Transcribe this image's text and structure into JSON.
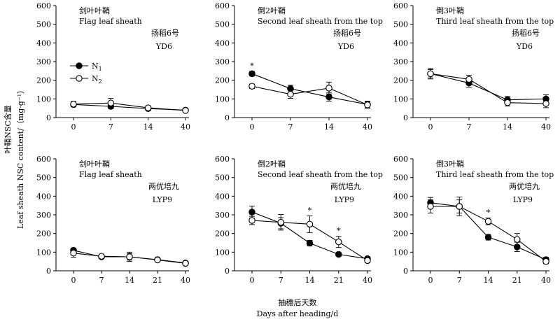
{
  "figure": {
    "y_label_cn": "叶鞘NSC含量",
    "y_label_en": "Leaf sheath NSC content/（mg·g⁻¹）",
    "x_label_cn": "抽穗后天数",
    "x_label_en": "Days after heading/d"
  },
  "legend": {
    "n1": "N",
    "n1_sub": "1",
    "n2": "N",
    "n2_sub": "2"
  },
  "chart_data": [
    {
      "type": "line",
      "title_cn": "剑叶叶鞘",
      "title_en": "Flag leaf sheath",
      "cultivar_cn": "扬稻6号",
      "cultivar_en": "YD6",
      "categories": [
        "0",
        "7",
        "14",
        "40"
      ],
      "ylim": [
        0,
        600
      ],
      "yticks": [
        0,
        100,
        200,
        300,
        400,
        500,
        600
      ],
      "series": [
        {
          "name": "N1",
          "values": [
            70,
            60,
            48,
            40
          ],
          "errors": [
            12,
            12,
            8,
            8
          ]
        },
        {
          "name": "N2",
          "values": [
            72,
            78,
            52,
            38
          ],
          "errors": [
            15,
            25,
            10,
            8
          ]
        }
      ],
      "significant": [],
      "has_legend": true
    },
    {
      "type": "line",
      "title_cn": "倒2叶鞘",
      "title_en": "Second leaf sheath from the top",
      "cultivar_cn": "扬稻6号",
      "cultivar_en": "YD6",
      "categories": [
        "0",
        "7",
        "14",
        "40"
      ],
      "ylim": [
        0,
        600
      ],
      "yticks": [
        0,
        100,
        200,
        300,
        400,
        500,
        600
      ],
      "series": [
        {
          "name": "N1",
          "values": [
            235,
            155,
            110,
            70
          ],
          "errors": [
            12,
            18,
            22,
            18
          ]
        },
        {
          "name": "N2",
          "values": [
            168,
            125,
            158,
            68
          ],
          "errors": [
            12,
            22,
            32,
            18
          ]
        }
      ],
      "significant": [
        0
      ],
      "star": "*",
      "has_legend": false
    },
    {
      "type": "line",
      "title_cn": "倒3叶鞘",
      "title_en": "Third leaf sheath from the top",
      "cultivar_cn": "扬稻6号",
      "cultivar_en": "YD6",
      "categories": [
        "0",
        "7",
        "14",
        "40"
      ],
      "ylim": [
        0,
        600
      ],
      "yticks": [
        0,
        100,
        200,
        300,
        400,
        500,
        600
      ],
      "series": [
        {
          "name": "N1",
          "values": [
            235,
            185,
            95,
            100
          ],
          "errors": [
            22,
            22,
            18,
            22
          ]
        },
        {
          "name": "N2",
          "values": [
            235,
            205,
            80,
            75
          ],
          "errors": [
            28,
            22,
            18,
            22
          ]
        }
      ],
      "significant": [],
      "has_legend": false
    },
    {
      "type": "line",
      "title_cn": "剑叶叶鞘",
      "title_en": "Flag leaf sheath",
      "cultivar_cn": "两优培九",
      "cultivar_en": "LYP9",
      "categories": [
        "0",
        "7",
        "14",
        "21",
        "40"
      ],
      "ylim": [
        0,
        600
      ],
      "yticks": [
        0,
        100,
        200,
        300,
        400,
        500,
        600
      ],
      "series": [
        {
          "name": "N1",
          "values": [
            110,
            75,
            75,
            60,
            42
          ],
          "errors": [
            12,
            10,
            18,
            10,
            8
          ]
        },
        {
          "name": "N2",
          "values": [
            95,
            78,
            75,
            58,
            40
          ],
          "errors": [
            22,
            10,
            25,
            10,
            10
          ]
        }
      ],
      "significant": [],
      "has_legend": false
    },
    {
      "type": "line",
      "title_cn": "倒2叶鞘",
      "title_en": "Second leaf sheath from the top",
      "cultivar_cn": "两优培九",
      "cultivar_en": "LYP9",
      "categories": [
        "0",
        "7",
        "14",
        "21",
        "40"
      ],
      "ylim": [
        0,
        600
      ],
      "yticks": [
        0,
        100,
        200,
        300,
        400,
        500,
        600
      ],
      "series": [
        {
          "name": "N1",
          "values": [
            315,
            255,
            148,
            88,
            65
          ],
          "errors": [
            32,
            30,
            15,
            10,
            10
          ]
        },
        {
          "name": "N2",
          "values": [
            270,
            260,
            250,
            155,
            55
          ],
          "errors": [
            22,
            42,
            45,
            30,
            12
          ]
        }
      ],
      "significant": [
        2,
        3
      ],
      "star": "*",
      "has_legend": false
    },
    {
      "type": "line",
      "title_cn": "倒3叶鞘",
      "title_en": "Third leaf sheath from the top",
      "cultivar_cn": "两优培九",
      "cultivar_en": "LYP9",
      "categories": [
        "0",
        "7",
        "14",
        "21",
        "40"
      ],
      "ylim": [
        0,
        600
      ],
      "yticks": [
        0,
        100,
        200,
        300,
        400,
        500,
        600
      ],
      "series": [
        {
          "name": "N1",
          "values": [
            365,
            345,
            180,
            128,
            60
          ],
          "errors": [
            28,
            35,
            15,
            25,
            12
          ]
        },
        {
          "name": "N2",
          "values": [
            345,
            345,
            265,
            168,
            50
          ],
          "errors": [
            35,
            50,
            18,
            32,
            12
          ]
        }
      ],
      "significant": [
        2
      ],
      "star": "*",
      "has_legend": false
    }
  ]
}
